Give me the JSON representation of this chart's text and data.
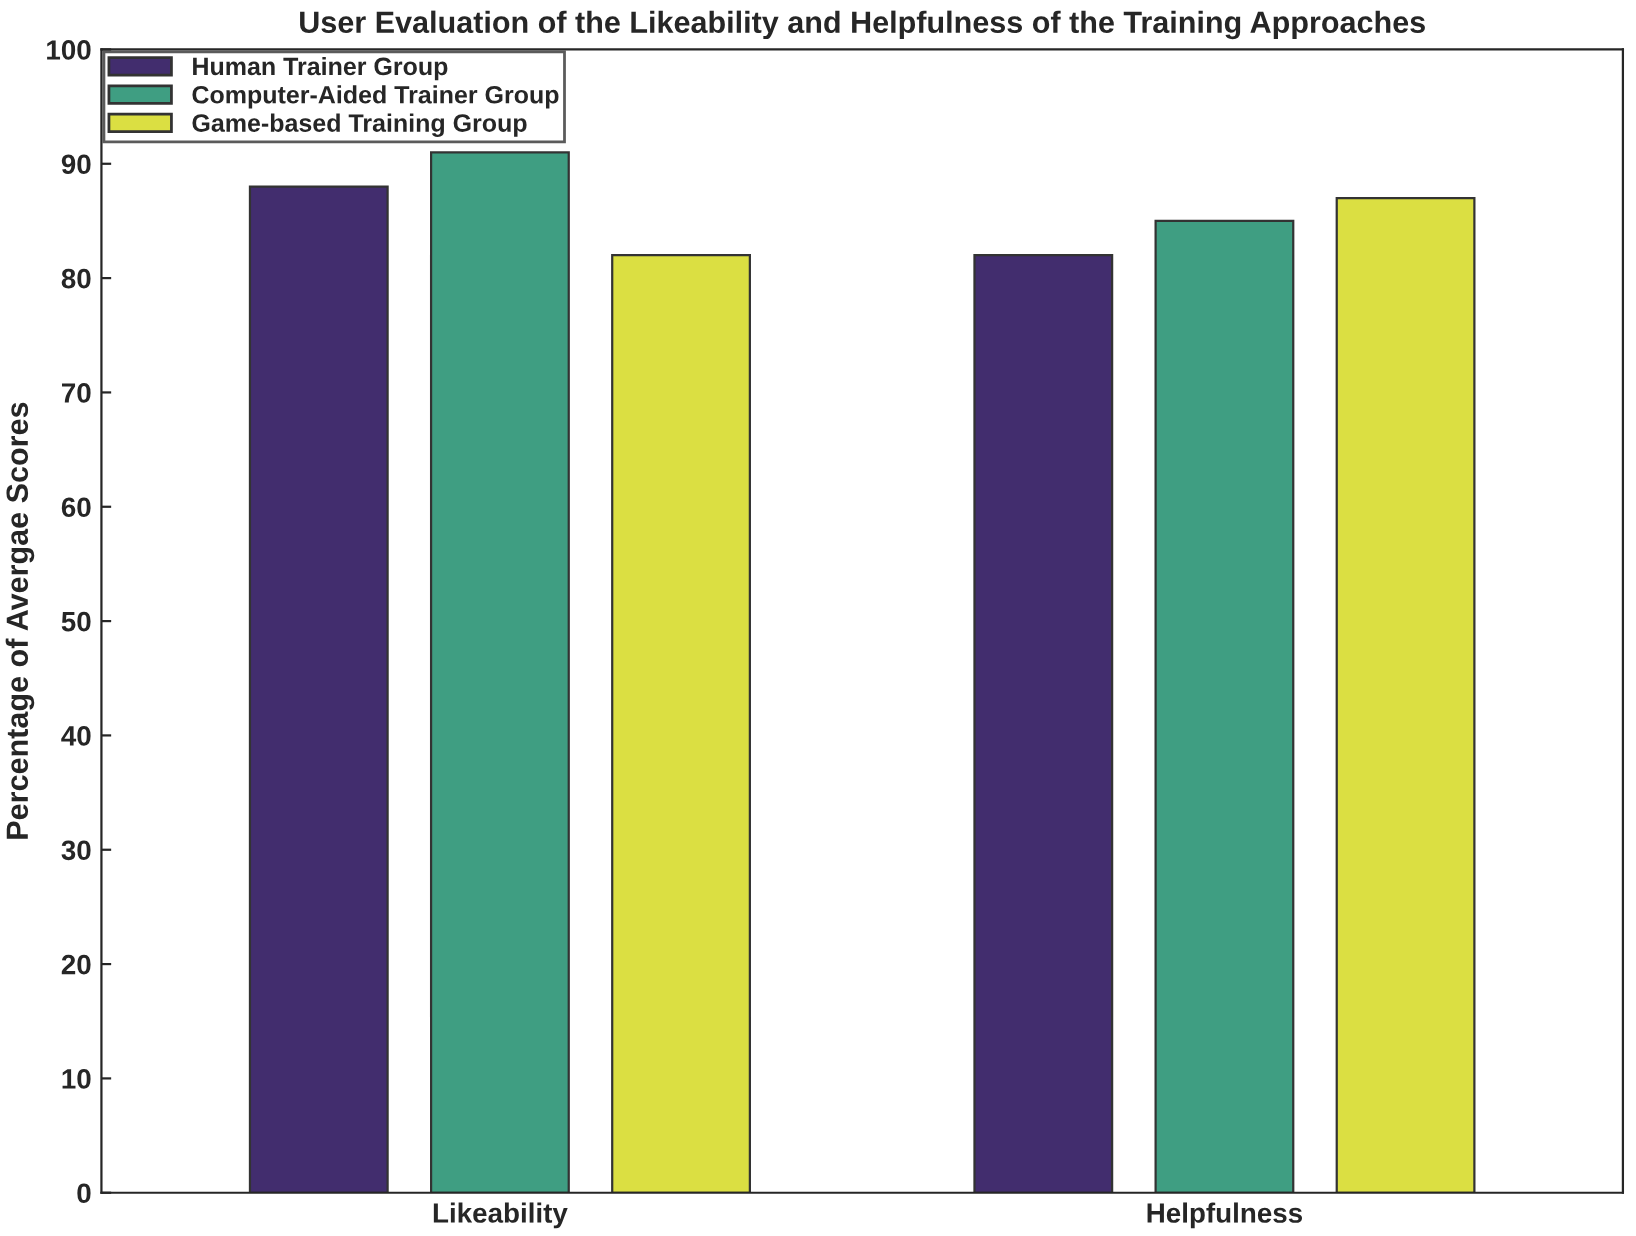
{
  "chart_data": {
    "type": "bar",
    "title": "User Evaluation of the Likeability and Helpfulness of the Training Approaches",
    "ylabel": "Percentage of Avergae Scores",
    "categories": [
      "Likeability",
      "Helpfulness"
    ],
    "series": [
      {
        "name": "Human Trainer Group",
        "color": "#422d6e",
        "values": [
          88,
          82
        ]
      },
      {
        "name": "Computer-Aided Trainer Group",
        "color": "#3f9e82",
        "values": [
          91,
          85
        ]
      },
      {
        "name": "Game-based Training Group",
        "color": "#dbdf42",
        "values": [
          82,
          87
        ]
      }
    ],
    "ylim": [
      0,
      100
    ],
    "yticks": [
      0,
      10,
      20,
      30,
      40,
      50,
      60,
      70,
      80,
      90,
      100
    ],
    "grid": false,
    "legend": "top left"
  }
}
